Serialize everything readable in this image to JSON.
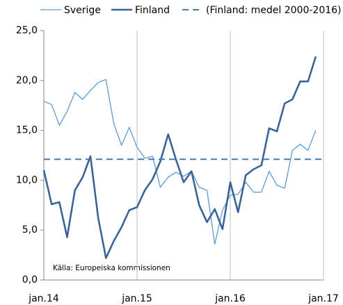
{
  "chart_data": {
    "type": "line",
    "categories": [
      "jan.14",
      null,
      null,
      null,
      null,
      null,
      null,
      null,
      null,
      null,
      null,
      null,
      "jan.15",
      null,
      null,
      null,
      null,
      null,
      null,
      null,
      null,
      null,
      null,
      null,
      "jan.16",
      null,
      null,
      null,
      null,
      null,
      null,
      null,
      null,
      null,
      null,
      null,
      "jan.17"
    ],
    "series": [
      {
        "name": "Sverige",
        "color": "#5b9bd5",
        "linewidth": 1.3,
        "linestyle": "solid",
        "values": [
          17.9,
          17.6,
          15.5,
          16.9,
          18.8,
          18.1,
          19.0,
          19.8,
          20.1,
          15.7,
          13.5,
          15.3,
          13.3,
          12.2,
          12.4,
          9.3,
          10.3,
          10.8,
          10.4,
          10.9,
          9.3,
          9.0,
          3.6,
          7.0,
          8.5,
          8.6,
          9.8,
          8.8,
          8.8,
          10.9,
          9.5,
          9.2,
          13.0,
          13.6,
          13.0,
          15.0,
          null
        ]
      },
      {
        "name": "Finland",
        "color": "#3b6496",
        "linewidth": 2.6,
        "linestyle": "solid",
        "values": [
          11.0,
          7.6,
          7.8,
          4.3,
          9.0,
          10.3,
          12.4,
          6.2,
          2.2,
          3.9,
          5.3,
          7.0,
          7.3,
          9.0,
          10.1,
          11.9,
          14.6,
          12.1,
          9.8,
          10.9,
          7.5,
          5.8,
          7.1,
          5.1,
          9.8,
          6.8,
          10.5,
          11.1,
          11.5,
          15.2,
          14.9,
          17.7,
          18.1,
          19.9,
          19.9,
          22.4,
          null
        ]
      },
      {
        "name": "(Finland: medel 2000-2016)",
        "color": "#4a78b0",
        "linewidth": 2,
        "linestyle": "dashed",
        "values": [
          12.1,
          12.1,
          12.1,
          12.1,
          12.1,
          12.1,
          12.1,
          12.1,
          12.1,
          12.1,
          12.1,
          12.1,
          12.1,
          12.1,
          12.1,
          12.1,
          12.1,
          12.1,
          12.1,
          12.1,
          12.1,
          12.1,
          12.1,
          12.1,
          12.1,
          12.1,
          12.1,
          12.1,
          12.1,
          12.1,
          12.1,
          12.1,
          12.1,
          12.1,
          12.1,
          12.1,
          12.1
        ]
      }
    ],
    "ylim": [
      0,
      25
    ],
    "yticks": [
      {
        "value": 0,
        "label": "0,0"
      },
      {
        "value": 5,
        "label": "5,0"
      },
      {
        "value": 10,
        "label": "10,0"
      },
      {
        "value": 15,
        "label": "15,0"
      },
      {
        "value": 20,
        "label": "20,0"
      },
      {
        "value": 25,
        "label": "25,0"
      }
    ],
    "annotation": "Källa: Europeiska kommissionen",
    "grid": "x",
    "legend": "top"
  }
}
